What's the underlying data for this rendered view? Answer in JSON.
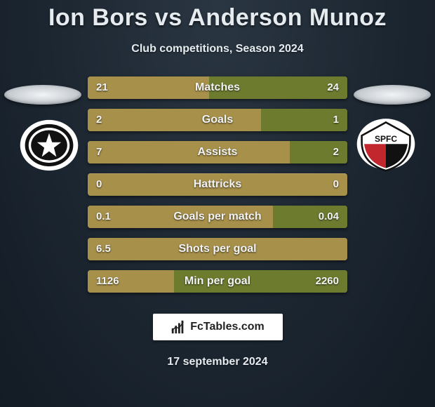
{
  "title": "Ion Bors vs Anderson Munoz",
  "subtitle": "Club competitions, Season 2024",
  "date": "17 september 2024",
  "watermark_text": "FcTables.com",
  "colors": {
    "bar_left": "#a7904a",
    "bar_right": "#6d7b2f",
    "bar_track": "#a7904a",
    "text": "#f1f3f5"
  },
  "left_team": {
    "name": "botafogo",
    "badge_svg_bg": "#ffffff",
    "badge_svg_fg": "#111111"
  },
  "right_team": {
    "name": "sao-paulo",
    "badge_label": "SPFC",
    "badge_svg_bg": "#ffffff",
    "badge_svg_red": "#c1272d",
    "badge_svg_black": "#111111"
  },
  "stats": [
    {
      "label": "Matches",
      "left_val": "21",
      "right_val": "24",
      "left_num": 21,
      "right_num": 24
    },
    {
      "label": "Goals",
      "left_val": "2",
      "right_val": "1",
      "left_num": 2,
      "right_num": 1
    },
    {
      "label": "Assists",
      "left_val": "7",
      "right_val": "2",
      "left_num": 7,
      "right_num": 2
    },
    {
      "label": "Hattricks",
      "left_val": "0",
      "right_val": "0",
      "left_num": 0,
      "right_num": 0
    },
    {
      "label": "Goals per match",
      "left_val": "0.1",
      "right_val": "0.04",
      "left_num": 0.1,
      "right_num": 0.04
    },
    {
      "label": "Shots per goal",
      "left_val": "6.5",
      "right_val": "",
      "left_num": 6.5,
      "right_num": 0
    },
    {
      "label": "Min per goal",
      "left_val": "1126",
      "right_val": "2260",
      "left_num": 1126,
      "right_num": 2260
    }
  ],
  "bar_render": {
    "comment": "Each half of the bar (left 50% / right 50%) is filled proportionally by that player's share of the row total. Zero/zero rows show track only.",
    "half_width_pct": 50
  }
}
